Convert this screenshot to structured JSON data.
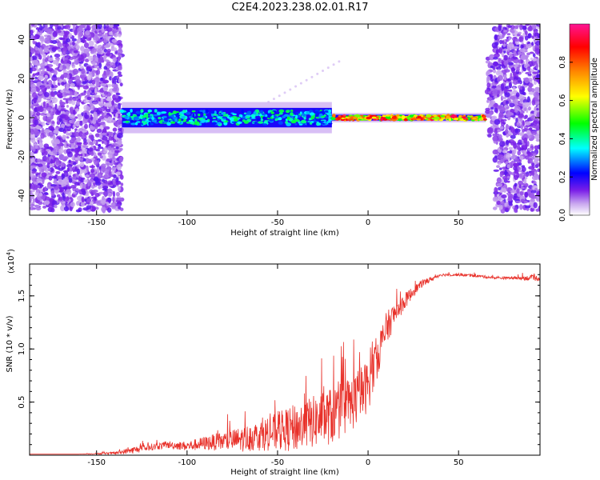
{
  "title": "C2E4.2023.238.02.01.R17",
  "chart_data": [
    {
      "type": "heatmap",
      "title": "C2E4.2023.238.02.01.R17",
      "xlabel": "Height of straight line (km)",
      "ylabel": "Frequency (Hz)",
      "xlim": [
        -187,
        95
      ],
      "ylim": [
        -50,
        48
      ],
      "xticks": [
        -150,
        -100,
        -50,
        0,
        50
      ],
      "yticks": [
        -40,
        -20,
        0,
        20,
        40
      ],
      "colorbar": {
        "label": "Normalized spectral amplitude",
        "ticks": [
          0.0,
          0.2,
          0.4,
          0.6,
          0.8
        ],
        "range": [
          0,
          1
        ],
        "colors": [
          "#ffffff",
          "#c9a8ef",
          "#7a1ee8",
          "#0000ff",
          "#00ffff",
          "#00ff00",
          "#ffff00",
          "#ff8800",
          "#ff0000",
          "#ff1493"
        ]
      },
      "regions": [
        {
          "name": "noise",
          "x": [
            -187,
            -136
          ],
          "freq_spread": [
            -48,
            48
          ],
          "amplitude": 0.12
        },
        {
          "name": "signal-band",
          "x": [
            -136,
            -20
          ],
          "freq_center": 0,
          "freq_halfwidth": 5,
          "amplitude": 0.35
        },
        {
          "name": "signal-narrow",
          "x": [
            -20,
            65
          ],
          "freq_center": 0,
          "freq_halfwidth": 1.5,
          "amplitude": 0.75
        },
        {
          "name": "edge-spike",
          "x": [
            66,
            70
          ],
          "freq_spread": [
            -10,
            32
          ],
          "amplitude": 0.3
        },
        {
          "name": "noise",
          "x": [
            70,
            95
          ],
          "freq_spread": [
            -48,
            48
          ],
          "amplitude": 0.12
        }
      ]
    },
    {
      "type": "line",
      "xlabel": "Height of straight line (km)",
      "ylabel": "SNR (10 * v/v)",
      "y_multiplier": "(x10^4)",
      "xlim": [
        -187,
        95
      ],
      "ylim": [
        0,
        1.8
      ],
      "xticks": [
        -150,
        -100,
        -50,
        0,
        50
      ],
      "yticks": [
        0.5,
        1.0,
        1.5
      ],
      "series": [
        {
          "color": "#e8312a",
          "x": [
            -187,
            -160,
            -140,
            -130,
            -120,
            -110,
            -100,
            -90,
            -80,
            -70,
            -60,
            -50,
            -40,
            -30,
            -20,
            -10,
            0,
            5,
            10,
            15,
            20,
            25,
            30,
            40,
            50,
            60,
            70,
            80,
            90,
            95
          ],
          "y": [
            0.01,
            0.01,
            0.02,
            0.05,
            0.08,
            0.1,
            0.09,
            0.12,
            0.14,
            0.16,
            0.2,
            0.24,
            0.28,
            0.34,
            0.4,
            0.5,
            0.68,
            0.95,
            1.2,
            1.35,
            1.45,
            1.55,
            1.62,
            1.7,
            1.7,
            1.69,
            1.67,
            1.67,
            1.67,
            1.67
          ],
          "noise": [
            0.0,
            0.0,
            0.02,
            0.05,
            0.05,
            0.05,
            0.07,
            0.1,
            0.14,
            0.18,
            0.22,
            0.28,
            0.35,
            0.38,
            0.42,
            0.42,
            0.38,
            0.32,
            0.24,
            0.18,
            0.12,
            0.08,
            0.05,
            0.02,
            0.02,
            0.02,
            0.02,
            0.02,
            0.04,
            0.04
          ]
        }
      ]
    }
  ]
}
